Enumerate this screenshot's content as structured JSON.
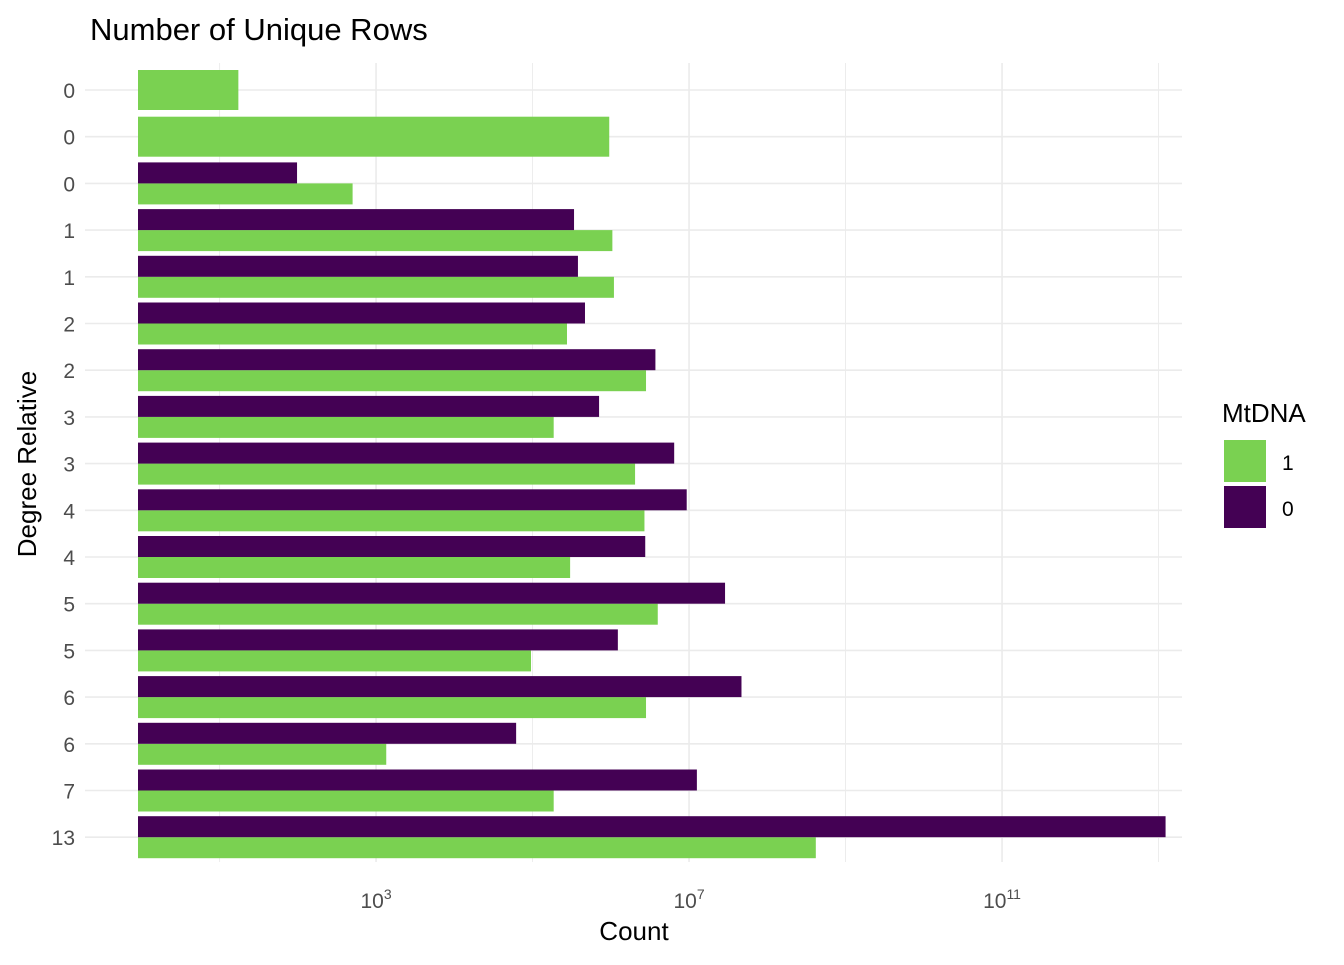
{
  "chart_data": {
    "type": "bar",
    "orientation": "horizontal",
    "title": "Number of Unique Rows",
    "xlabel": "Count",
    "ylabel": "Degree Relative",
    "x_scale": "log10",
    "x_domain_log10": [
      -0.72,
      13.3
    ],
    "x_ticks": [
      {
        "base": "10",
        "exp": "3",
        "log10": 3
      },
      {
        "base": "10",
        "exp": "7",
        "log10": 7
      },
      {
        "base": "10",
        "exp": "11",
        "log10": 11
      }
    ],
    "x_minor_breaks_log10": [
      1,
      5,
      9,
      13
    ],
    "grid": true,
    "legend": {
      "title": "MtDNA",
      "position": "right",
      "entries": [
        {
          "label": "1",
          "color": "#7AD151"
        },
        {
          "label": "0",
          "color": "#440154"
        }
      ]
    },
    "colors": {
      "mt1": "#7AD151",
      "mt0": "#440154",
      "grid": "#EBEBEB"
    },
    "categories": [
      "0",
      "0",
      "0",
      "1",
      "1",
      "2",
      "2",
      "3",
      "3",
      "4",
      "4",
      "5",
      "5",
      "6",
      "6",
      "7",
      "13"
    ],
    "series": [
      {
        "name": "1",
        "log10_values": [
          1.24,
          5.98,
          2.7,
          6.02,
          6.04,
          5.44,
          6.45,
          5.27,
          6.31,
          6.43,
          5.48,
          6.6,
          4.98,
          6.45,
          3.13,
          5.27,
          8.62
        ]
      },
      {
        "name": "0",
        "log10_values": [
          null,
          null,
          1.99,
          5.53,
          5.58,
          5.67,
          6.57,
          5.85,
          6.81,
          6.97,
          6.44,
          7.46,
          6.09,
          7.67,
          4.79,
          7.1,
          13.09
        ]
      }
    ]
  }
}
